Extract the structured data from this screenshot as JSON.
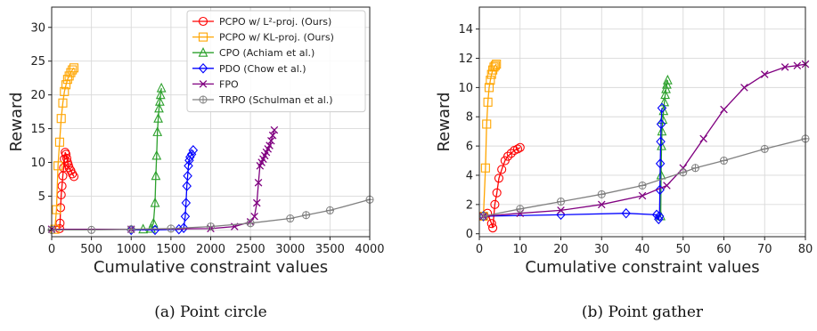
{
  "chart_data": [
    {
      "type": "line",
      "caption": "(a) Point circle",
      "xlabel": "Cumulative constraint values",
      "ylabel": "Reward",
      "xlim": [
        0,
        4000
      ],
      "ylim": [
        -1,
        33
      ],
      "xticks": [
        0,
        500,
        1000,
        1500,
        2000,
        2500,
        3000,
        3500,
        4000
      ],
      "yticks": [
        0,
        5,
        10,
        15,
        20,
        25,
        30
      ],
      "grid": true,
      "legend_position": "top-right",
      "series": [
        {
          "name": "PCPO w/ L²-proj. (Ours)",
          "color": "#ff0000",
          "marker": "circle",
          "x": [
            100,
            105,
            112,
            120,
            130,
            140,
            150,
            160,
            170,
            180,
            190,
            200,
            210,
            220,
            240,
            260,
            280
          ],
          "y": [
            0.2,
            1,
            3.3,
            5.2,
            6.5,
            8,
            9.2,
            10.5,
            11.5,
            11.2,
            10.6,
            10,
            9.6,
            9.2,
            8.8,
            8.3,
            7.9
          ]
        },
        {
          "name": "PCPO w/ KL-proj. (Ours)",
          "color": "#ffa500",
          "marker": "square",
          "x": [
            40,
            60,
            80,
            100,
            120,
            140,
            160,
            180,
            200,
            220,
            240,
            260,
            280
          ],
          "y": [
            0.1,
            3,
            9.5,
            13,
            16.5,
            18.8,
            20.5,
            21.5,
            22.3,
            22.8,
            23.3,
            23.7,
            24
          ]
        },
        {
          "name": "CPO (Achiam et al.)",
          "color": "#2ca02c",
          "marker": "triangle",
          "x": [
            1150,
            1250,
            1280,
            1300,
            1310,
            1320,
            1330,
            1340,
            1350,
            1360,
            1370,
            1380
          ],
          "y": [
            0.1,
            0.2,
            1,
            4,
            8,
            11,
            14.5,
            16.5,
            18,
            19,
            20,
            21
          ]
        },
        {
          "name": "PDO (Chow et al.)",
          "color": "#0000ff",
          "marker": "diamond",
          "x": [
            1000,
            1300,
            1600,
            1660,
            1680,
            1690,
            1700,
            1710,
            1720,
            1730,
            1740,
            1760,
            1780
          ],
          "y": [
            0.0,
            0.0,
            0.1,
            0.3,
            2,
            4,
            6.5,
            8,
            9.5,
            10.3,
            10.8,
            11.2,
            11.8
          ]
        },
        {
          "name": "FPO",
          "color": "#800080",
          "marker": "x",
          "x": [
            0,
            1000,
            2000,
            2300,
            2500,
            2550,
            2580,
            2600,
            2620,
            2640,
            2660,
            2680,
            2700,
            2720,
            2740,
            2760,
            2780,
            2800
          ],
          "y": [
            0.1,
            0.1,
            0.2,
            0.5,
            1.2,
            2,
            4,
            7,
            9.5,
            10,
            10.5,
            11,
            11.5,
            12,
            12.5,
            13.2,
            14,
            14.8
          ]
        },
        {
          "name": "TRPO (Schulman et al.)",
          "color": "#808080",
          "marker": "plus-circle",
          "x": [
            0,
            500,
            1000,
            1500,
            2000,
            2500,
            3000,
            3200,
            3500,
            4000
          ],
          "y": [
            0,
            0,
            0.1,
            0.2,
            0.5,
            1.0,
            1.7,
            2.2,
            2.9,
            4.5
          ]
        }
      ]
    },
    {
      "type": "line",
      "caption": "(b) Point gather",
      "xlabel": "Cumulative constraint values",
      "ylabel": "Reward",
      "xlim": [
        0,
        80
      ],
      "ylim": [
        -0.2,
        15.5
      ],
      "xticks": [
        0,
        10,
        20,
        30,
        40,
        50,
        60,
        70,
        80
      ],
      "yticks": [
        0,
        2,
        4,
        6,
        8,
        10,
        12,
        14
      ],
      "grid": true,
      "series": [
        {
          "name": "PCPO w/ L²-proj. (Ours)",
          "color": "#ff0000",
          "marker": "circle",
          "x": [
            1,
            2,
            3,
            3.3,
            3.8,
            4.3,
            4.8,
            5.5,
            6.3,
            7,
            7.8,
            8.6,
            9.4,
            10
          ],
          "y": [
            1.2,
            1.4,
            0.7,
            0.4,
            2,
            2.8,
            3.8,
            4.4,
            5,
            5.3,
            5.5,
            5.7,
            5.8,
            5.9
          ]
        },
        {
          "name": "PCPO w/ KL-proj. (Ours)",
          "color": "#ffa500",
          "marker": "square",
          "x": [
            1,
            1.5,
            1.8,
            2.1,
            2.4,
            2.7,
            3.0,
            3.3,
            3.6,
            3.9,
            4.2
          ],
          "y": [
            1.2,
            4.5,
            7.5,
            9,
            10,
            10.5,
            10.9,
            11.2,
            11.4,
            11.5,
            11.6
          ]
        },
        {
          "name": "CPO (Achiam et al.)",
          "color": "#2ca02c",
          "marker": "triangle",
          "x": [
            44.5,
            44.6,
            44.7,
            44.8,
            45,
            45.2,
            45.4,
            45.6,
            45.8,
            46,
            46.2
          ],
          "y": [
            1.2,
            4,
            6,
            7,
            7.8,
            8.4,
            9,
            9.5,
            9.9,
            10.2,
            10.5
          ]
        },
        {
          "name": "PDO (Chow et al.)",
          "color": "#0000ff",
          "marker": "diamond",
          "x": [
            1,
            20,
            36,
            43.5,
            44,
            44.2,
            44.3,
            44.4,
            44.5,
            44.6,
            44.8
          ],
          "y": [
            1.2,
            1.3,
            1.4,
            1.3,
            1.0,
            1.2,
            3,
            4.8,
            6.3,
            7.5,
            8.6
          ]
        },
        {
          "name": "FPO",
          "color": "#800080",
          "marker": "x",
          "x": [
            1,
            10,
            20,
            30,
            40,
            46,
            50,
            55,
            60,
            65,
            70,
            75,
            78,
            80
          ],
          "y": [
            1.2,
            1.4,
            1.6,
            2,
            2.6,
            3.3,
            4.5,
            6.5,
            8.5,
            10,
            10.9,
            11.4,
            11.5,
            11.6
          ]
        },
        {
          "name": "TRPO (Schulman et al.)",
          "color": "#808080",
          "marker": "plus-circle",
          "x": [
            1,
            10,
            20,
            30,
            40,
            50,
            53,
            60,
            70,
            80
          ],
          "y": [
            1.2,
            1.7,
            2.2,
            2.7,
            3.3,
            4.2,
            4.5,
            5,
            5.8,
            6.5
          ]
        }
      ]
    }
  ]
}
